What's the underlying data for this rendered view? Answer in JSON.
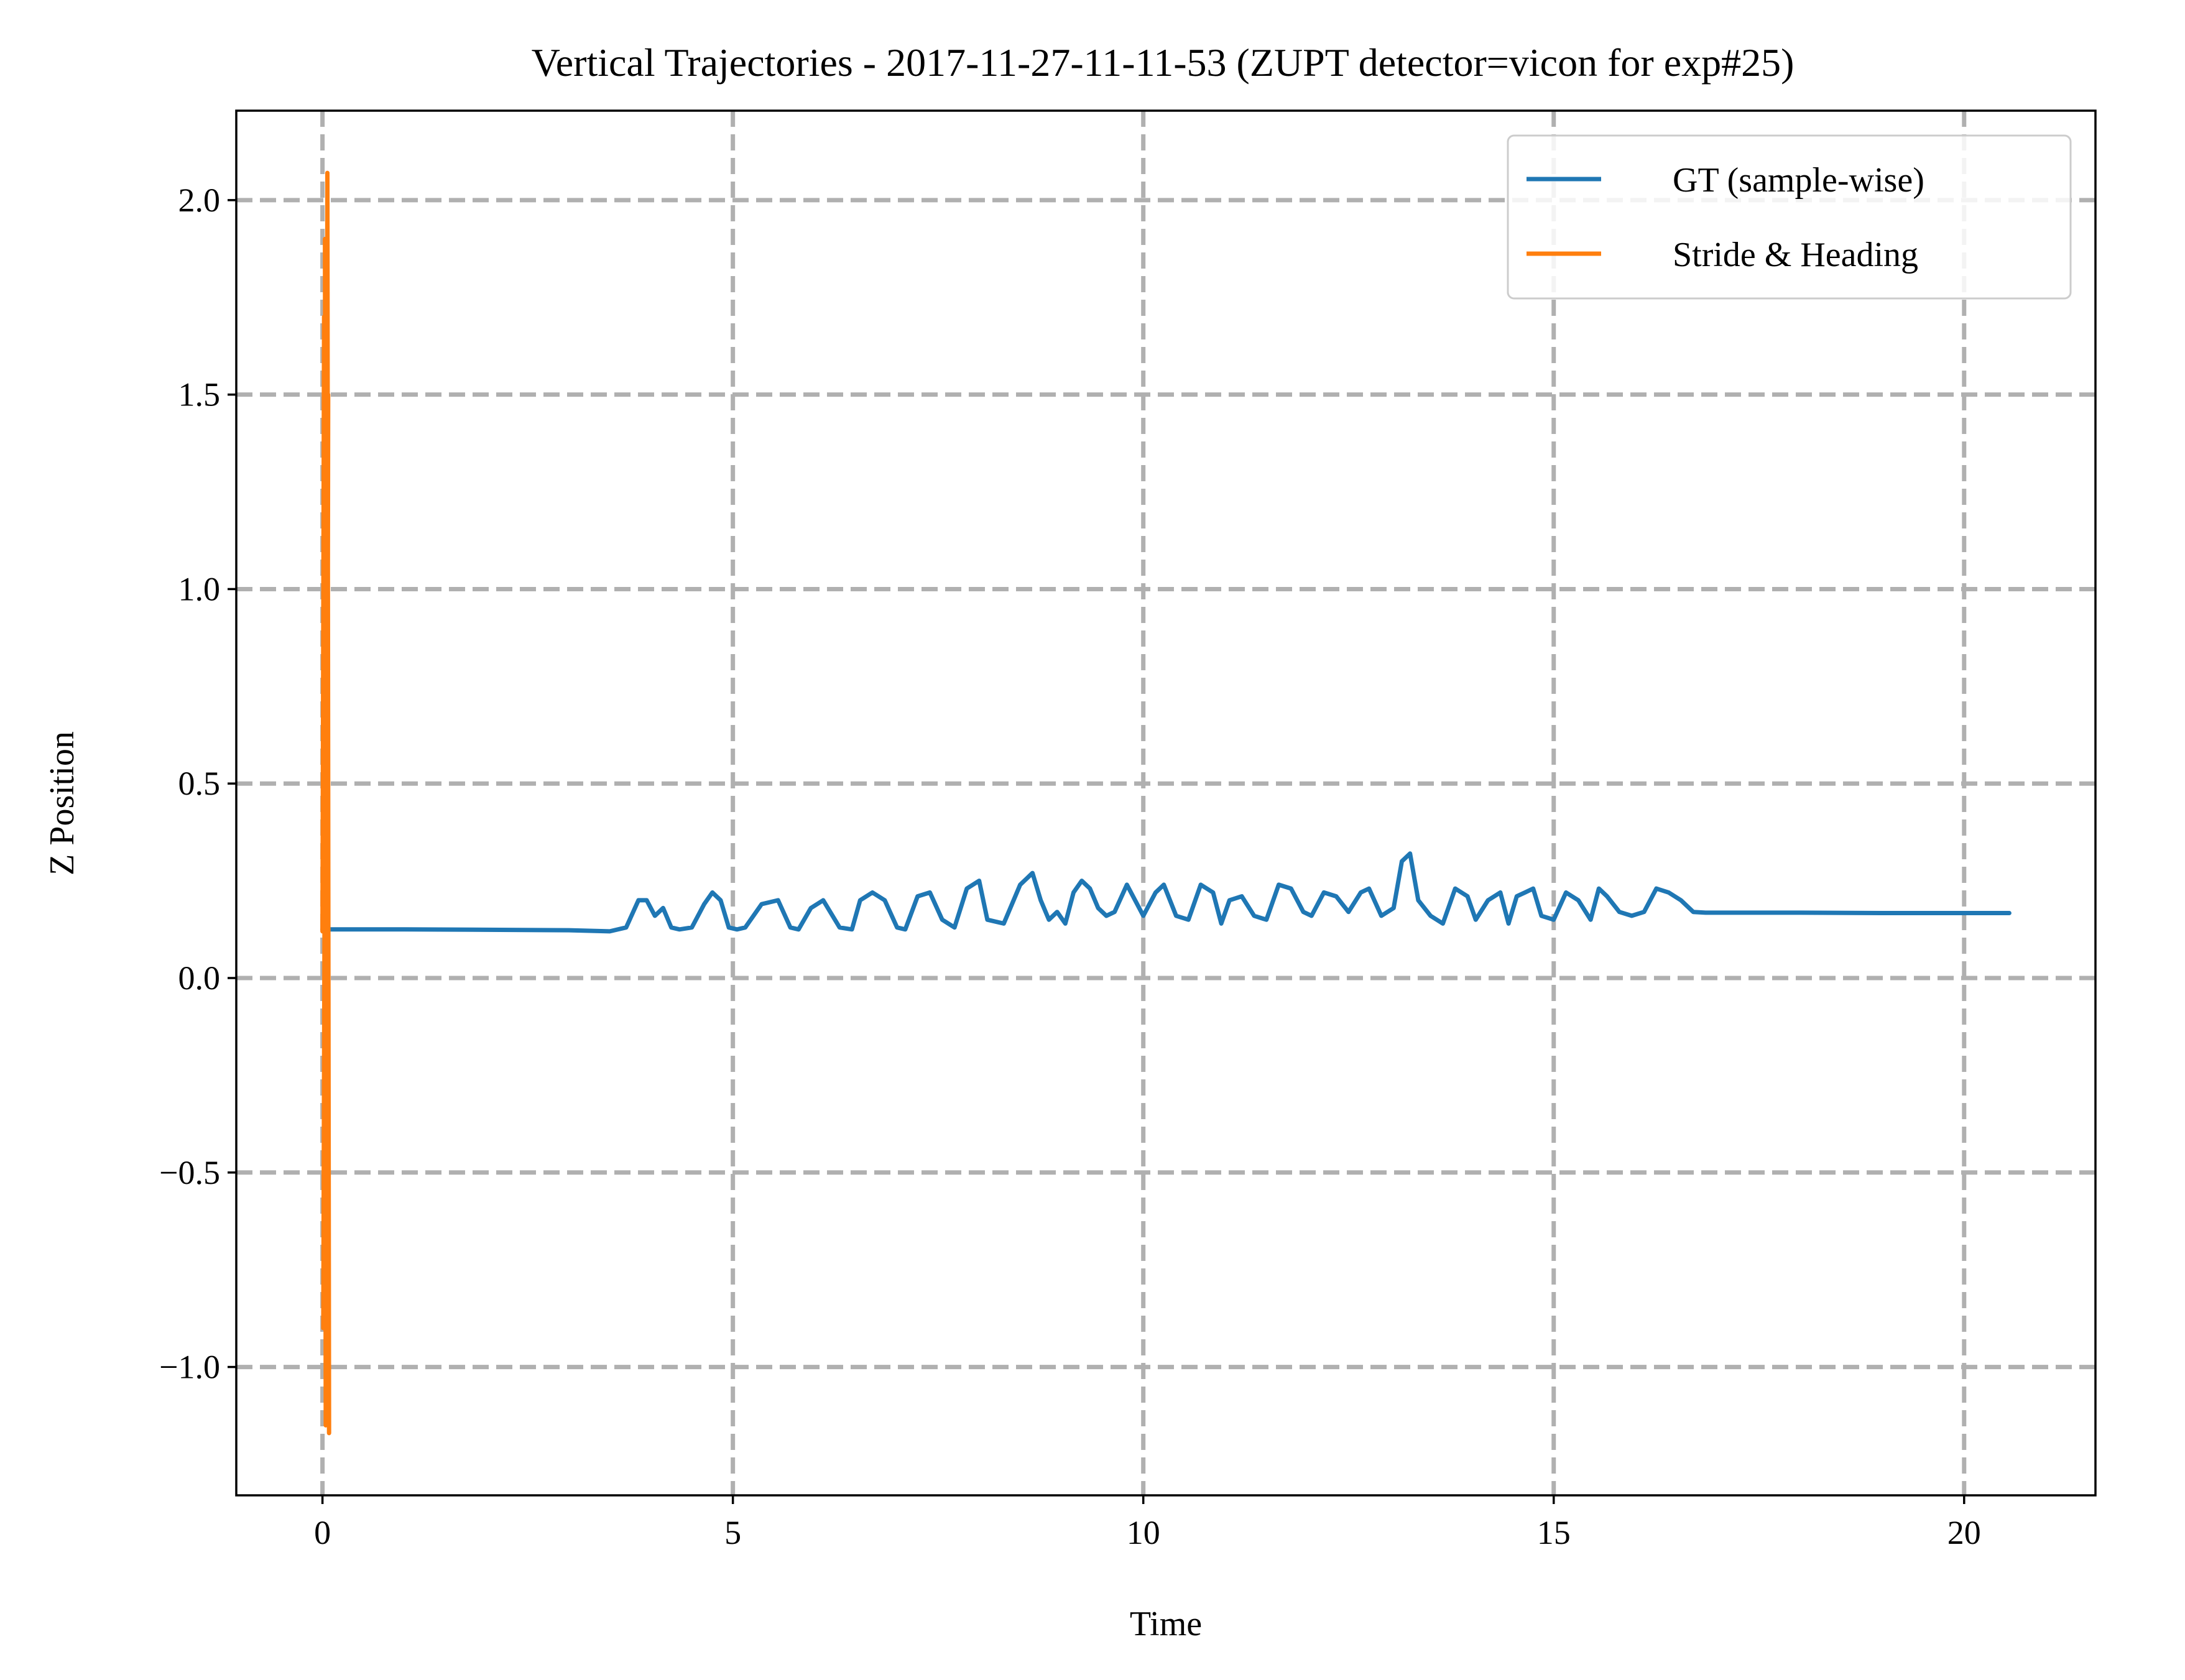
{
  "chart_data": {
    "type": "line",
    "title": "Vertical Trajectories - 2017-11-27-11-11-53 (ZUPT detector=vicon for exp#25)",
    "xlabel": "Time",
    "ylabel": "Z Position",
    "xlim": [
      -1.05,
      21.6
    ],
    "ylim": [
      -1.33,
      2.23
    ],
    "xticks": [
      0,
      5,
      10,
      15,
      20
    ],
    "xtick_labels": [
      "0",
      "5",
      "10",
      "15",
      "20"
    ],
    "yticks": [
      -1.0,
      -0.5,
      0.0,
      0.5,
      1.0,
      1.5,
      2.0
    ],
    "ytick_labels": [
      "−1.0",
      "−0.5",
      "0.0",
      "0.5",
      "1.0",
      "1.5",
      "2.0"
    ],
    "grid": true,
    "grid_style": "dashed",
    "legend_position": "top-right",
    "series": [
      {
        "name": "GT (sample-wise)",
        "color": "#1f77b4",
        "x": [
          0.0,
          1.0,
          2.0,
          3.0,
          3.5,
          3.7,
          3.85,
          3.95,
          4.05,
          4.15,
          4.25,
          4.35,
          4.5,
          4.65,
          4.75,
          4.85,
          4.95,
          5.05,
          5.15,
          5.35,
          5.55,
          5.7,
          5.8,
          5.95,
          6.1,
          6.3,
          6.45,
          6.55,
          6.7,
          6.85,
          7.0,
          7.1,
          7.25,
          7.4,
          7.55,
          7.7,
          7.85,
          8.0,
          8.1,
          8.3,
          8.5,
          8.65,
          8.75,
          8.85,
          8.95,
          9.05,
          9.15,
          9.25,
          9.35,
          9.45,
          9.55,
          9.65,
          9.8,
          10.0,
          10.15,
          10.25,
          10.4,
          10.55,
          10.7,
          10.85,
          10.95,
          11.05,
          11.2,
          11.35,
          11.5,
          11.65,
          11.8,
          11.95,
          12.05,
          12.2,
          12.35,
          12.5,
          12.65,
          12.75,
          12.9,
          13.05,
          13.15,
          13.25,
          13.35,
          13.5,
          13.65,
          13.8,
          13.95,
          14.05,
          14.2,
          14.35,
          14.45,
          14.55,
          14.65,
          14.75,
          14.85,
          15.0,
          15.15,
          15.3,
          15.45,
          15.55,
          15.65,
          15.8,
          15.95,
          16.1,
          16.25,
          16.4,
          16.55,
          16.7,
          16.85,
          17.0,
          18.0,
          19.0,
          20.0,
          20.55
        ],
        "y": [
          0.125,
          0.125,
          0.124,
          0.123,
          0.12,
          0.13,
          0.2,
          0.2,
          0.16,
          0.18,
          0.13,
          0.125,
          0.13,
          0.19,
          0.22,
          0.2,
          0.13,
          0.125,
          0.13,
          0.19,
          0.2,
          0.13,
          0.125,
          0.18,
          0.2,
          0.13,
          0.125,
          0.2,
          0.22,
          0.2,
          0.13,
          0.125,
          0.21,
          0.22,
          0.15,
          0.13,
          0.23,
          0.25,
          0.15,
          0.14,
          0.24,
          0.27,
          0.2,
          0.15,
          0.17,
          0.14,
          0.22,
          0.25,
          0.23,
          0.18,
          0.16,
          0.17,
          0.24,
          0.16,
          0.22,
          0.24,
          0.16,
          0.15,
          0.24,
          0.22,
          0.14,
          0.2,
          0.21,
          0.16,
          0.15,
          0.24,
          0.23,
          0.17,
          0.16,
          0.22,
          0.21,
          0.17,
          0.22,
          0.23,
          0.16,
          0.18,
          0.3,
          0.32,
          0.2,
          0.16,
          0.14,
          0.23,
          0.21,
          0.15,
          0.2,
          0.22,
          0.14,
          0.21,
          0.22,
          0.23,
          0.16,
          0.15,
          0.22,
          0.2,
          0.15,
          0.23,
          0.21,
          0.17,
          0.16,
          0.17,
          0.23,
          0.22,
          0.2,
          0.17,
          0.168,
          0.168,
          0.168,
          0.167,
          0.167,
          0.167
        ]
      },
      {
        "name": "Stride & Heading",
        "color": "#ff7f0e",
        "x": [
          0.0,
          0.02,
          0.04,
          0.06,
          0.08,
          0.03,
          0.05,
          0.07,
          0.01,
          0.04,
          0.06,
          0.02,
          0.05,
          0.03,
          0.06,
          0.04
        ],
        "y": [
          0.12,
          1.7,
          -1.15,
          2.07,
          -1.17,
          1.9,
          -1.0,
          1.5,
          -0.9,
          1.2,
          -0.6,
          0.9,
          -0.3,
          0.6,
          0.1,
          0.12
        ]
      }
    ]
  }
}
